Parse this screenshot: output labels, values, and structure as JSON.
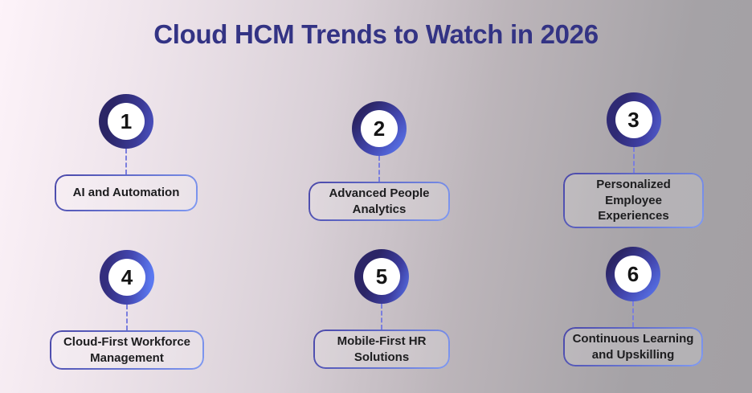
{
  "title": "Cloud HCM Trends to Watch in 2026",
  "colors": {
    "title": "#333384",
    "background_left": "#fdf3f9",
    "background_right": "#a5a2a6",
    "ring_dark": "#2b2566",
    "ring_light": "#5b79f1",
    "box_border_dark": "#4a47a8",
    "box_border_light": "#7f9af3",
    "connector": "#7a7ede",
    "number_text": "#141414",
    "label_text": "#1d1d1f"
  },
  "trends": [
    {
      "number": "1",
      "label": "AI and Automation"
    },
    {
      "number": "2",
      "label": "Advanced People\nAnalytics"
    },
    {
      "number": "3",
      "label": "Personalized Employee\nExperiences"
    },
    {
      "number": "4",
      "label": "Cloud-First Workforce\nManagement"
    },
    {
      "number": "5",
      "label": "Mobile-First HR\nSolutions"
    },
    {
      "number": "6",
      "label": "Continuous Learning\nand Upskilling"
    }
  ]
}
